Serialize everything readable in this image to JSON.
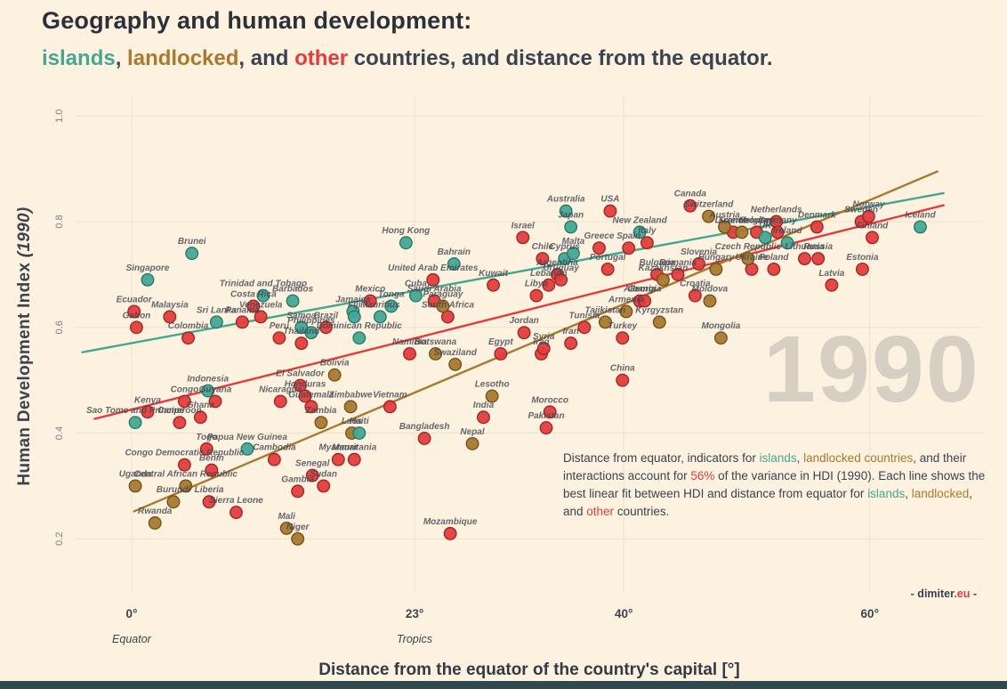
{
  "palette": {
    "islands": "#45a692",
    "landlocked": "#a8792f",
    "other": "#e23d3d",
    "text": "#3b4250"
  },
  "header": {
    "title_line1": "Geography and human development:",
    "title_line2_segments": [
      {
        "text": "islands",
        "color": "islands"
      },
      {
        "text": ", ",
        "color": "text"
      },
      {
        "text": "landlocked",
        "color": "landlocked"
      },
      {
        "text": ", and ",
        "color": "text"
      },
      {
        "text": "other",
        "color": "other"
      },
      {
        "text": " countries, and distance from the equator.",
        "color": "text"
      }
    ]
  },
  "annotation": {
    "segments": [
      {
        "text": "Distance from equator, indicators for ",
        "color": "text"
      },
      {
        "text": "islands",
        "color": "islands"
      },
      {
        "text": ", ",
        "color": "text"
      },
      {
        "text": "landlocked countries",
        "color": "landlocked"
      },
      {
        "text": ", and their interactions account for ",
        "color": "text"
      },
      {
        "text": "56%",
        "color": "other"
      },
      {
        "text": " of the variance in HDI (1990). Each line shows the best linear fit between HDI and distance from equator for ",
        "color": "text"
      },
      {
        "text": "islands",
        "color": "islands"
      },
      {
        "text": ", ",
        "color": "text"
      },
      {
        "text": "landlocked",
        "color": "landlocked"
      },
      {
        "text": ", and ",
        "color": "text"
      },
      {
        "text": "other",
        "color": "other"
      },
      {
        "text": " countries.",
        "color": "text"
      }
    ]
  },
  "footer": {
    "credit_segments": [
      {
        "text": "- dimiter",
        "color": "text"
      },
      {
        "text": ".eu",
        "color": "other"
      },
      {
        "text": " -",
        "color": "text"
      }
    ]
  },
  "chart_data": {
    "type": "scatter",
    "title": "Geography and human development: islands, landlocked, and other countries, and distance from the equator.",
    "watermark": "1990",
    "xlabel": "Distance from the equator of the country's capital [°]",
    "ylabel": "Human Development Index (1990)",
    "ylabel_segments": [
      {
        "text": "Human Development Index ",
        "color": "text"
      },
      {
        "text": "(1990)",
        "color": "text",
        "italic": true
      }
    ],
    "xlim": [
      -4.55,
      69.2
    ],
    "ylim": [
      0.0995,
      1.0374
    ],
    "grid": true,
    "grid_color": "#efe1c8",
    "x_ticks": [
      {
        "value": 0,
        "label": "0°",
        "sublabel": "Equator"
      },
      {
        "value": 23,
        "label": "23°",
        "sublabel": "Tropics"
      },
      {
        "value": 40,
        "label": "40°",
        "sublabel": ""
      },
      {
        "value": 60,
        "label": "60°",
        "sublabel": ""
      }
    ],
    "y_ticks": [
      {
        "value": 0.2,
        "label": "0.2"
      },
      {
        "value": 0.4,
        "label": "0.4"
      },
      {
        "value": 0.6,
        "label": "0.6"
      },
      {
        "value": 0.8,
        "label": "0.8"
      },
      {
        "value": 1.0,
        "label": "1.0"
      }
    ],
    "trendlines": [
      {
        "group": "islands",
        "x1": -4,
        "y1": 0.553,
        "x2": 66,
        "y2": 0.854
      },
      {
        "group": "other",
        "x1": -3,
        "y1": 0.427,
        "x2": 66,
        "y2": 0.831
      },
      {
        "group": "landlocked",
        "x1": 0.2,
        "y1": 0.252,
        "x2": 65.5,
        "y2": 0.895
      }
    ],
    "series": [
      {
        "name": "other",
        "color": "#e23d3d",
        "stroke": "#9c2424",
        "points": [
          {
            "country": "Ecuador",
            "x": 0.2,
            "y": 0.63
          },
          {
            "country": "Gabon",
            "x": 0.4,
            "y": 0.6
          },
          {
            "country": "Kenya",
            "x": 1.3,
            "y": 0.44
          },
          {
            "country": "Malaysia",
            "x": 3.1,
            "y": 0.62
          },
          {
            "country": "Cameroon",
            "x": 3.9,
            "y": 0.42
          },
          {
            "country": "Congo",
            "x": 4.3,
            "y": 0.46
          },
          {
            "country": "Congo Democratic Republic",
            "x": 4.3,
            "y": 0.34
          },
          {
            "country": "Colombia",
            "x": 4.6,
            "y": 0.58
          },
          {
            "country": "Ghana",
            "x": 5.6,
            "y": 0.43
          },
          {
            "country": "Togo",
            "x": 6.1,
            "y": 0.37
          },
          {
            "country": "Liberia",
            "x": 6.3,
            "y": 0.27
          },
          {
            "country": "Benin",
            "x": 6.5,
            "y": 0.33
          },
          {
            "country": "Guyana",
            "x": 6.8,
            "y": 0.46
          },
          {
            "country": "Sierra Leone",
            "x": 8.5,
            "y": 0.25
          },
          {
            "country": "Panama",
            "x": 9.0,
            "y": 0.61
          },
          {
            "country": "Costa Rica",
            "x": 9.9,
            "y": 0.64
          },
          {
            "country": "Venezuela",
            "x": 10.5,
            "y": 0.62
          },
          {
            "country": "Cambodia",
            "x": 11.6,
            "y": 0.35
          },
          {
            "country": "Peru",
            "x": 12.0,
            "y": 0.58
          },
          {
            "country": "Nicaragua",
            "x": 12.1,
            "y": 0.46
          },
          {
            "country": "Gambia",
            "x": 13.5,
            "y": 0.29
          },
          {
            "country": "El Salvador",
            "x": 13.7,
            "y": 0.49
          },
          {
            "country": "Thailand",
            "x": 13.8,
            "y": 0.57
          },
          {
            "country": "Honduras",
            "x": 14.1,
            "y": 0.47
          },
          {
            "country": "Guatemala",
            "x": 14.6,
            "y": 0.45
          },
          {
            "country": "Senegal",
            "x": 14.7,
            "y": 0.32
          },
          {
            "country": "Sudan",
            "x": 15.6,
            "y": 0.3
          },
          {
            "country": "Brazil",
            "x": 15.8,
            "y": 0.6
          },
          {
            "country": "Myanmar",
            "x": 16.8,
            "y": 0.35
          },
          {
            "country": "Mauritania",
            "x": 18.1,
            "y": 0.35
          },
          {
            "country": "Mexico",
            "x": 19.4,
            "y": 0.65
          },
          {
            "country": "Vietnam",
            "x": 21.0,
            "y": 0.45
          },
          {
            "country": "Namibia",
            "x": 22.6,
            "y": 0.55
          },
          {
            "country": "Bangladesh",
            "x": 23.8,
            "y": 0.39
          },
          {
            "country": "United Arab Emirates",
            "x": 24.5,
            "y": 0.69
          },
          {
            "country": "Saudi Arabia",
            "x": 24.6,
            "y": 0.65
          },
          {
            "country": "South Africa",
            "x": 25.7,
            "y": 0.62
          },
          {
            "country": "Mozambique",
            "x": 25.9,
            "y": 0.21
          },
          {
            "country": "India",
            "x": 28.6,
            "y": 0.43
          },
          {
            "country": "Kuwait",
            "x": 29.4,
            "y": 0.68
          },
          {
            "country": "Egypt",
            "x": 30.0,
            "y": 0.55
          },
          {
            "country": "Israel",
            "x": 31.8,
            "y": 0.77
          },
          {
            "country": "Jordan",
            "x": 31.9,
            "y": 0.59
          },
          {
            "country": "Libya",
            "x": 32.9,
            "y": 0.66
          },
          {
            "country": "Iraq",
            "x": 33.3,
            "y": 0.55
          },
          {
            "country": "Chile",
            "x": 33.4,
            "y": 0.73
          },
          {
            "country": "Syria",
            "x": 33.5,
            "y": 0.56
          },
          {
            "country": "Pakistan",
            "x": 33.7,
            "y": 0.41
          },
          {
            "country": "Lebanon",
            "x": 33.9,
            "y": 0.68
          },
          {
            "country": "Morocco",
            "x": 34.0,
            "y": 0.44
          },
          {
            "country": "Argentina",
            "x": 34.6,
            "y": 0.7
          },
          {
            "country": "Uruguay",
            "x": 34.9,
            "y": 0.69
          },
          {
            "country": "Iran",
            "x": 35.7,
            "y": 0.57
          },
          {
            "country": "Tunisia",
            "x": 36.8,
            "y": 0.6
          },
          {
            "country": "Greece",
            "x": 38.0,
            "y": 0.75
          },
          {
            "country": "Portugal",
            "x": 38.7,
            "y": 0.71
          },
          {
            "country": "USA",
            "x": 38.9,
            "y": 0.82
          },
          {
            "country": "China",
            "x": 39.9,
            "y": 0.5
          },
          {
            "country": "Turkey",
            "x": 39.9,
            "y": 0.58
          },
          {
            "country": "Spain",
            "x": 40.4,
            "y": 0.75
          },
          {
            "country": "Albania",
            "x": 41.3,
            "y": 0.65
          },
          {
            "country": "Georgia",
            "x": 41.7,
            "y": 0.65
          },
          {
            "country": "Italy",
            "x": 41.9,
            "y": 0.76
          },
          {
            "country": "Bulgaria",
            "x": 42.7,
            "y": 0.7
          },
          {
            "country": "Romania",
            "x": 44.4,
            "y": 0.7
          },
          {
            "country": "Canada",
            "x": 45.4,
            "y": 0.83
          },
          {
            "country": "Croatia",
            "x": 45.8,
            "y": 0.66
          },
          {
            "country": "Slovenia",
            "x": 46.1,
            "y": 0.72
          },
          {
            "country": "France",
            "x": 48.9,
            "y": 0.78
          },
          {
            "country": "Ukraine",
            "x": 50.4,
            "y": 0.71
          },
          {
            "country": "Belgium",
            "x": 50.8,
            "y": 0.78
          },
          {
            "country": "Poland",
            "x": 52.2,
            "y": 0.71
          },
          {
            "country": "Netherlands",
            "x": 52.4,
            "y": 0.8
          },
          {
            "country": "Germany",
            "x": 52.5,
            "y": 0.78
          },
          {
            "country": "Lithuania",
            "x": 54.7,
            "y": 0.73
          },
          {
            "country": "Denmark",
            "x": 55.7,
            "y": 0.79
          },
          {
            "country": "Russia",
            "x": 55.8,
            "y": 0.73
          },
          {
            "country": "Latvia",
            "x": 56.9,
            "y": 0.68
          },
          {
            "country": "Sweden",
            "x": 59.3,
            "y": 0.8
          },
          {
            "country": "Estonia",
            "x": 59.4,
            "y": 0.71
          },
          {
            "country": "Norway",
            "x": 59.9,
            "y": 0.81
          },
          {
            "country": "Finland",
            "x": 60.2,
            "y": 0.77
          }
        ]
      },
      {
        "name": "landlocked",
        "color": "#a8792f",
        "stroke": "#6f4e1a",
        "points": [
          {
            "country": "Uganda",
            "x": 0.3,
            "y": 0.3
          },
          {
            "country": "Rwanda",
            "x": 1.9,
            "y": 0.23
          },
          {
            "country": "Burundi",
            "x": 3.4,
            "y": 0.27
          },
          {
            "country": "Central African Republic",
            "x": 4.4,
            "y": 0.3
          },
          {
            "country": "Mali",
            "x": 12.6,
            "y": 0.22
          },
          {
            "country": "Niger",
            "x": 13.5,
            "y": 0.2
          },
          {
            "country": "Zambia",
            "x": 15.4,
            "y": 0.42
          },
          {
            "country": "Bolivia",
            "x": 16.5,
            "y": 0.51
          },
          {
            "country": "Zimbabwe",
            "x": 17.8,
            "y": 0.45
          },
          {
            "country": "Laos",
            "x": 17.9,
            "y": 0.4
          },
          {
            "country": "Botswana",
            "x": 24.7,
            "y": 0.55
          },
          {
            "country": "Paraguay",
            "x": 25.3,
            "y": 0.64
          },
          {
            "country": "Swaziland",
            "x": 26.3,
            "y": 0.53
          },
          {
            "country": "Nepal",
            "x": 27.7,
            "y": 0.38
          },
          {
            "country": "Lesotho",
            "x": 29.3,
            "y": 0.47
          },
          {
            "country": "Tajikistan",
            "x": 38.5,
            "y": 0.61
          },
          {
            "country": "Armenia",
            "x": 40.2,
            "y": 0.63
          },
          {
            "country": "Kyrgyzstan",
            "x": 42.9,
            "y": 0.61
          },
          {
            "country": "Kazakhstan",
            "x": 43.2,
            "y": 0.69
          },
          {
            "country": "Switzerland",
            "x": 46.9,
            "y": 0.81
          },
          {
            "country": "Moldova",
            "x": 47.0,
            "y": 0.65
          },
          {
            "country": "Hungary",
            "x": 47.5,
            "y": 0.71
          },
          {
            "country": "Mongolia",
            "x": 47.9,
            "y": 0.58
          },
          {
            "country": "Austria",
            "x": 48.2,
            "y": 0.79
          },
          {
            "country": "Luxembourg",
            "x": 49.6,
            "y": 0.78
          },
          {
            "country": "Czech Republic",
            "x": 50.1,
            "y": 0.73
          }
        ]
      },
      {
        "name": "islands",
        "color": "#45a692",
        "stroke": "#23776a",
        "points": [
          {
            "country": "Sao Tome and Principe",
            "x": 0.3,
            "y": 0.42
          },
          {
            "country": "Singapore",
            "x": 1.3,
            "y": 0.69
          },
          {
            "country": "Brunei",
            "x": 4.9,
            "y": 0.74
          },
          {
            "country": "Indonesia",
            "x": 6.2,
            "y": 0.48
          },
          {
            "country": "Sri Lanka",
            "x": 6.9,
            "y": 0.61
          },
          {
            "country": "Papua New Guinea",
            "x": 9.4,
            "y": 0.37
          },
          {
            "country": "Trinidad and Tobago",
            "x": 10.7,
            "y": 0.66
          },
          {
            "country": "Barbados",
            "x": 13.1,
            "y": 0.65
          },
          {
            "country": "Samoa",
            "x": 13.8,
            "y": 0.6
          },
          {
            "country": "Philippines",
            "x": 14.6,
            "y": 0.59
          },
          {
            "country": "Jamaica",
            "x": 18.0,
            "y": 0.63
          },
          {
            "country": "Fiji",
            "x": 18.1,
            "y": 0.62
          },
          {
            "country": "Dominican Republic",
            "x": 18.5,
            "y": 0.58
          },
          {
            "country": "Haiti",
            "x": 18.5,
            "y": 0.4
          },
          {
            "country": "Mauritius",
            "x": 20.2,
            "y": 0.62
          },
          {
            "country": "Tonga",
            "x": 21.1,
            "y": 0.64
          },
          {
            "country": "Hong Kong",
            "x": 22.3,
            "y": 0.76
          },
          {
            "country": "Cuba",
            "x": 23.1,
            "y": 0.66
          },
          {
            "country": "Bahrain",
            "x": 26.2,
            "y": 0.72
          },
          {
            "country": "Cyprus",
            "x": 35.2,
            "y": 0.73
          },
          {
            "country": "Australia",
            "x": 35.3,
            "y": 0.82
          },
          {
            "country": "Japan",
            "x": 35.7,
            "y": 0.79
          },
          {
            "country": "Malta",
            "x": 35.9,
            "y": 0.74
          },
          {
            "country": "New Zealand",
            "x": 41.3,
            "y": 0.78
          },
          {
            "country": "UK",
            "x": 51.5,
            "y": 0.77
          },
          {
            "country": "Ireland",
            "x": 53.3,
            "y": 0.76
          },
          {
            "country": "Iceland",
            "x": 64.1,
            "y": 0.79
          }
        ]
      }
    ]
  }
}
